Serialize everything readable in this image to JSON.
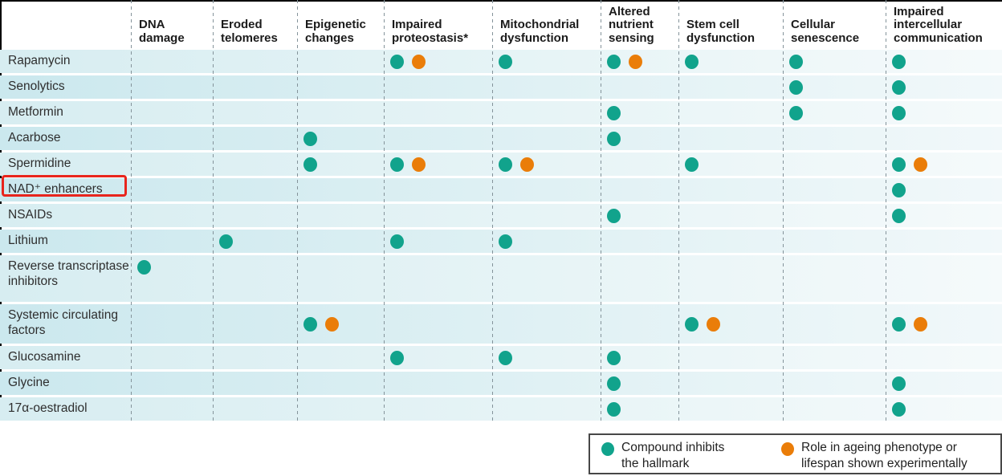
{
  "figure": {
    "highlight": {
      "target_row": "NAD⁺ enhancers",
      "color": "#E8251D"
    }
  },
  "chart_data": {
    "type": "table",
    "description": "Dot matrix of compounds versus hallmarks of ageing",
    "marker_colors": {
      "inhibits": "#11A38C",
      "experimental": "#EA7D09"
    },
    "legend_position": "bottom-right",
    "legend": [
      {
        "marker": "inhibits",
        "color": "#11A38C",
        "line1": "Compound inhibits",
        "line2": "the hallmark"
      },
      {
        "marker": "experimental",
        "color": "#EA7D09",
        "line1": "Role in ageing phenotype or",
        "line2": "lifespan shown experimentally"
      }
    ],
    "columns": [
      "DNA damage",
      "Eroded telomeres",
      "Epigenetic changes",
      "Impaired proteostasis*",
      "Mitochondrial dysfunction",
      "Altered nutrient sensing",
      "Stem cell dysfunction",
      "Cellular senescence",
      "Impaired intercellular communication"
    ],
    "rows": [
      {
        "label": "Rapamycin",
        "cells": [
          [],
          [],
          [],
          [
            "inhibits",
            "experimental"
          ],
          [
            "inhibits"
          ],
          [
            "inhibits",
            "experimental"
          ],
          [
            "inhibits"
          ],
          [
            "inhibits"
          ],
          [
            "inhibits"
          ]
        ]
      },
      {
        "label": "Senolytics",
        "cells": [
          [],
          [],
          [],
          [],
          [],
          [],
          [],
          [
            "inhibits"
          ],
          [
            "inhibits"
          ]
        ]
      },
      {
        "label": "Metformin",
        "cells": [
          [],
          [],
          [],
          [],
          [],
          [
            "inhibits"
          ],
          [],
          [
            "inhibits"
          ],
          [
            "inhibits"
          ]
        ]
      },
      {
        "label": "Acarbose",
        "cells": [
          [],
          [],
          [
            "inhibits"
          ],
          [],
          [],
          [
            "inhibits"
          ],
          [],
          [],
          []
        ]
      },
      {
        "label": "Spermidine",
        "cells": [
          [],
          [],
          [
            "inhibits"
          ],
          [
            "inhibits",
            "experimental"
          ],
          [
            "inhibits",
            "experimental"
          ],
          [],
          [
            "inhibits"
          ],
          [],
          [
            "inhibits",
            "experimental"
          ]
        ]
      },
      {
        "label": "NAD⁺ enhancers",
        "highlighted": true,
        "cells": [
          [],
          [],
          [],
          [],
          [],
          [],
          [],
          [],
          [
            "inhibits"
          ]
        ]
      },
      {
        "label": "NSAIDs",
        "cells": [
          [],
          [],
          [],
          [],
          [],
          [
            "inhibits"
          ],
          [],
          [],
          [
            "inhibits"
          ]
        ]
      },
      {
        "label": "Lithium",
        "cells": [
          [],
          [
            "inhibits"
          ],
          [],
          [
            "inhibits"
          ],
          [
            "inhibits"
          ],
          [],
          [],
          [],
          []
        ]
      },
      {
        "label": "Reverse transcriptase inhibitors",
        "cells": [
          [
            "inhibits"
          ],
          [],
          [],
          [],
          [],
          [],
          [],
          [],
          []
        ]
      },
      {
        "label": "Systemic circulating factors",
        "cells": [
          [],
          [],
          [
            "inhibits",
            "experimental"
          ],
          [],
          [],
          [],
          [
            "inhibits",
            "experimental"
          ],
          [],
          [
            "inhibits",
            "experimental"
          ]
        ]
      },
      {
        "label": "Glucosamine",
        "cells": [
          [],
          [],
          [],
          [
            "inhibits"
          ],
          [
            "inhibits"
          ],
          [
            "inhibits"
          ],
          [],
          [],
          []
        ]
      },
      {
        "label": "Glycine",
        "cells": [
          [],
          [],
          [],
          [],
          [],
          [
            "inhibits"
          ],
          [],
          [],
          [
            "inhibits"
          ]
        ]
      },
      {
        "label": "17α-oestradiol",
        "cells": [
          [],
          [],
          [],
          [],
          [],
          [
            "inhibits"
          ],
          [],
          [],
          [
            "inhibits"
          ]
        ]
      }
    ]
  }
}
